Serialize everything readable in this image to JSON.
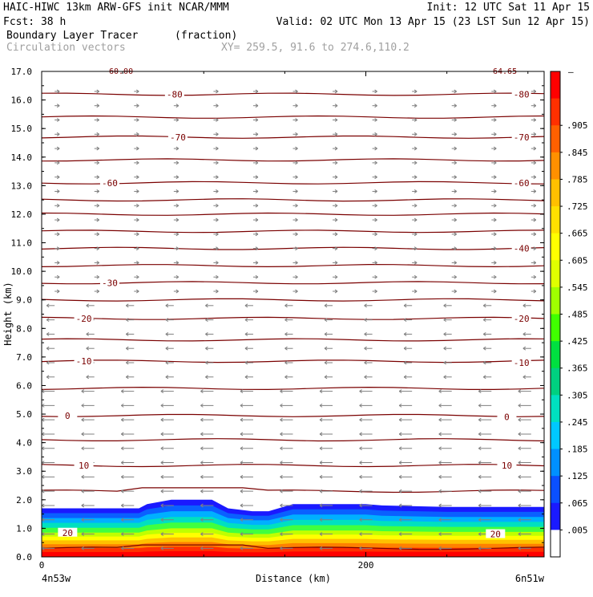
{
  "header": {
    "line1_left": "HAIC-HIWC 13km ARW-GFS init   NCAR/MMM",
    "line1_right": "Init: 12 UTC Sat 11 Apr 15",
    "line2_left": "Fcst:   38 h",
    "line2_right": "Valid: 02 UTC Mon 13 Apr 15 (23 LST Sun 12 Apr 15)",
    "line3_left": "Boundary Layer Tracer",
    "line3_unit": "(fraction)",
    "line4_left": "Circulation vectors",
    "line4_xy": "XY= 259.5, 91.6 to 274.6,110.2"
  },
  "chart_data": {
    "type": "heatmap",
    "title": "Boundary Layer Tracer",
    "units": "(fraction)",
    "xlabel": "Distance (km)",
    "ylabel": "Height (km)",
    "xlim": [
      0,
      310
    ],
    "ylim": [
      0,
      17
    ],
    "x_ticks": [
      0,
      200
    ],
    "x_tick_labels": [
      "0",
      "200"
    ],
    "x_end_labels": [
      "4n53w",
      "6n51w"
    ],
    "y_ticks": [
      0,
      1,
      2,
      3,
      4,
      5,
      6,
      7,
      8,
      9,
      10,
      11,
      12,
      13,
      14,
      15,
      16,
      17
    ],
    "y_tick_labels": [
      "0.0",
      "1.0",
      "2.0",
      "3.0",
      "4.0",
      "5.0",
      "6.0",
      "7.0",
      "8.0",
      "9.0",
      "10.0",
      "11.0",
      "12.0",
      "13.0",
      "14.0",
      "15.0",
      "16.0",
      "17.0"
    ],
    "colorbar": {
      "levels": [
        ".005",
        ".065",
        ".125",
        ".185",
        ".245",
        ".305",
        ".365",
        ".425",
        ".485",
        ".545",
        ".605",
        ".665",
        ".725",
        ".785",
        ".845",
        ".905"
      ],
      "colors": [
        "#ffffff",
        "#1a1aff",
        "#0a50ff",
        "#0090ff",
        "#00c8ff",
        "#00e0c0",
        "#00d080",
        "#00e040",
        "#40ff00",
        "#a0ff00",
        "#e0ff00",
        "#ffff00",
        "#ffe000",
        "#ffc000",
        "#ff9000",
        "#ff6000",
        "#ff3000",
        "#ff0000"
      ],
      "top_label": "–"
    },
    "tracer_layer": {
      "x": [
        0,
        60,
        65,
        80,
        105,
        115,
        130,
        140,
        155,
        200,
        210,
        250,
        310
      ],
      "top_height_km": [
        1.7,
        1.7,
        1.85,
        2.0,
        2.0,
        1.7,
        1.6,
        1.6,
        1.85,
        1.85,
        1.8,
        1.75,
        1.75
      ]
    },
    "contour_labels_left": [
      {
        "label": "-80",
        "x": 82,
        "y": 16.2
      },
      {
        "label": "-70",
        "x": 84,
        "y": 14.7
      },
      {
        "label": "-60",
        "x": 42,
        "y": 13.1
      },
      {
        "label": "-30",
        "x": 42,
        "y": 9.6
      },
      {
        "label": "-20",
        "x": 26,
        "y": 8.35
      },
      {
        "label": "-10",
        "x": 26,
        "y": 6.85
      },
      {
        "label": "0",
        "x": 16,
        "y": 4.95
      },
      {
        "label": "10",
        "x": 26,
        "y": 3.2
      },
      {
        "label": "20",
        "x": 16,
        "y": 0.85
      }
    ],
    "contour_labels_right": [
      {
        "label": "-80",
        "x": 296,
        "y": 16.2
      },
      {
        "label": "-70",
        "x": 296,
        "y": 14.7
      },
      {
        "label": "-60",
        "x": 296,
        "y": 13.1
      },
      {
        "label": "-40",
        "x": 296,
        "y": 10.8
      },
      {
        "label": "-20",
        "x": 296,
        "y": 8.35
      },
      {
        "label": "-10",
        "x": 296,
        "y": 6.8
      },
      {
        "label": "0",
        "x": 287,
        "y": 4.9
      },
      {
        "label": "10",
        "x": 287,
        "y": 3.2
      },
      {
        "label": "20",
        "x": 280,
        "y": 0.8
      }
    ],
    "contour_levels_y": [
      0.3,
      2.3,
      3.2,
      4.1,
      4.95,
      5.9,
      6.85,
      7.6,
      8.35,
      9.0,
      9.6,
      10.2,
      10.8,
      11.4,
      12.0,
      12.5,
      13.1,
      13.9,
      14.7,
      15.4,
      16.2
    ],
    "top_partial_labels": [
      "60.00",
      "64.65"
    ]
  }
}
